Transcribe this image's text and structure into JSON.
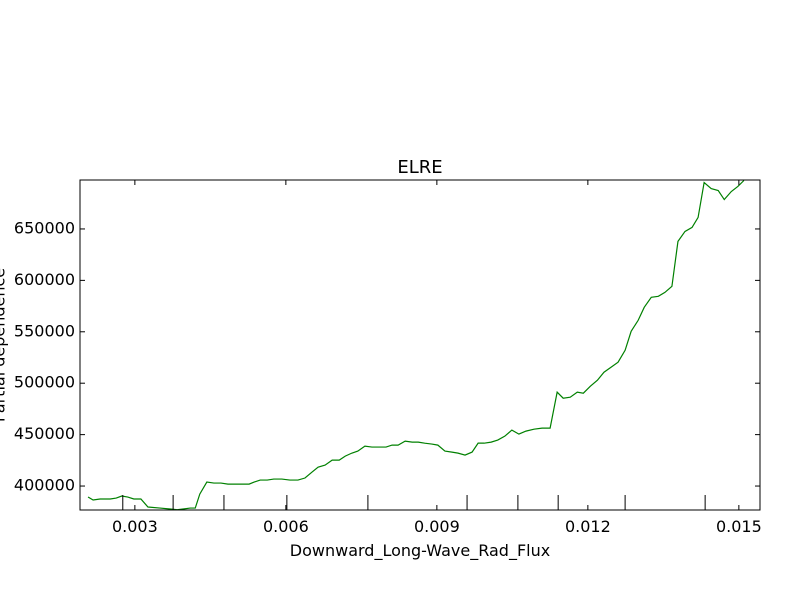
{
  "chart_data": {
    "type": "line",
    "title": "ELRE",
    "xlabel": "Downward_Long-Wave_Rad_Flux",
    "ylabel": "Partial dependence",
    "xlim": [
      0.00191,
      0.01542
    ],
    "ylim": [
      376700,
      697600
    ],
    "xticks": [
      0.003,
      0.006,
      0.009,
      0.012,
      0.015
    ],
    "yticks": [
      400000,
      450000,
      500000,
      550000,
      600000,
      650000
    ],
    "deciles": [
      0.00276,
      0.00376,
      0.00477,
      0.00602,
      0.00763,
      0.0096,
      0.01061,
      0.01141,
      0.01274,
      0.01433
    ],
    "x": [
      0.00207,
      0.00217,
      0.00231,
      0.00251,
      0.00263,
      0.00274,
      0.00286,
      0.00298,
      0.00312,
      0.00326,
      0.0035,
      0.0037,
      0.00384,
      0.00396,
      0.0041,
      0.0042,
      0.00429,
      0.00443,
      0.00457,
      0.00471,
      0.00485,
      0.00499,
      0.00513,
      0.00527,
      0.00537,
      0.00549,
      0.00563,
      0.00576,
      0.00592,
      0.00608,
      0.00624,
      0.00638,
      0.00652,
      0.00664,
      0.00678,
      0.00692,
      0.00706,
      0.00718,
      0.00731,
      0.00743,
      0.00757,
      0.00771,
      0.00787,
      0.00799,
      0.00811,
      0.00823,
      0.00837,
      0.00851,
      0.00863,
      0.00876,
      0.0089,
      0.00902,
      0.00916,
      0.0093,
      0.00942,
      0.00956,
      0.0097,
      0.00982,
      0.00994,
      0.01008,
      0.01021,
      0.01035,
      0.01049,
      0.01063,
      0.01077,
      0.01093,
      0.01109,
      0.01125,
      0.01139,
      0.01151,
      0.01165,
      0.01179,
      0.01191,
      0.01205,
      0.01219,
      0.01232,
      0.01246,
      0.0126,
      0.01274,
      0.01286,
      0.013,
      0.01312,
      0.01326,
      0.0134,
      0.01353,
      0.01367,
      0.01379,
      0.01393,
      0.01407,
      0.01419,
      0.01431,
      0.01445,
      0.01459,
      0.01471,
      0.01485,
      0.01498,
      0.0151
    ],
    "series": [
      {
        "color": "#008000",
        "values": [
          389300,
          386400,
          387400,
          387400,
          388300,
          390300,
          389300,
          387400,
          387400,
          379600,
          378600,
          377700,
          377000,
          377700,
          378600,
          378600,
          392200,
          403900,
          402900,
          402900,
          401900,
          401900,
          401900,
          401900,
          403900,
          405800,
          405800,
          406800,
          406800,
          405800,
          405800,
          407800,
          413600,
          418400,
          420400,
          425200,
          425200,
          429100,
          432000,
          434000,
          438800,
          437900,
          437900,
          437900,
          439800,
          439800,
          443700,
          442700,
          442700,
          441700,
          440800,
          439800,
          434000,
          433000,
          432000,
          430100,
          433000,
          441700,
          441700,
          442700,
          444700,
          448500,
          454400,
          450500,
          453400,
          455300,
          456300,
          456300,
          491300,
          485400,
          486400,
          491300,
          490300,
          497100,
          502900,
          510700,
          515500,
          520400,
          532000,
          550500,
          561200,
          573800,
          583500,
          584500,
          588300,
          594200,
          637900,
          647600,
          651500,
          661200,
          695100,
          689300,
          687400,
          678600,
          686400,
          691300,
          697100
        ]
      }
    ]
  }
}
